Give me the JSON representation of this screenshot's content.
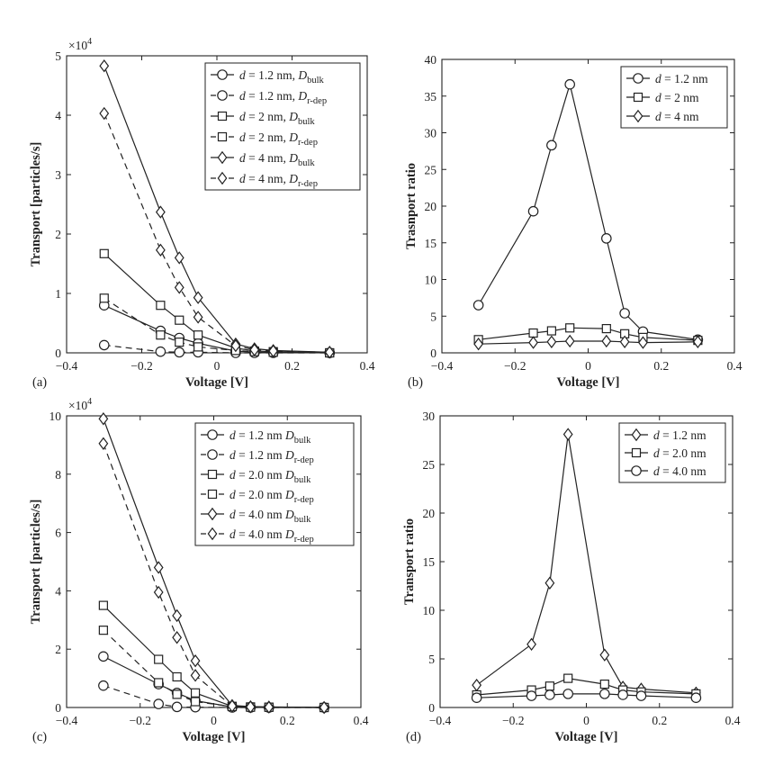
{
  "chart_data": [
    {
      "id": "a",
      "type": "line",
      "panel_label": "(a)",
      "xlabel": "Voltage [V]",
      "ylabel": "Transport [particles/s]",
      "xlim": [
        -0.4,
        0.4
      ],
      "ylim": [
        0,
        5
      ],
      "xticks": [
        -0.4,
        -0.2,
        0,
        0.2,
        0.4
      ],
      "xticklabels": [
        "−0.4",
        "−0.2",
        "0",
        "0.2",
        "0.4"
      ],
      "yticks": [
        0,
        1,
        2,
        3,
        4,
        5
      ],
      "yticklabels": [
        "0",
        "1",
        "2",
        "3",
        "4",
        "5"
      ],
      "exponent": {
        "base": "×10",
        "power": "4"
      },
      "legend_position": "top-right",
      "x": [
        -0.3,
        -0.15,
        -0.1,
        -0.05,
        0.05,
        0.1,
        0.15,
        0.3
      ],
      "series": [
        {
          "name": "d = 1.2 nm, D_bulk",
          "label_pre": "d",
          "label_mid": " = 1.2 nm, ",
          "label_D": "D",
          "label_sub": "bulk",
          "marker": "circle",
          "dash": false,
          "values": [
            0.8,
            0.37,
            0.25,
            0.16,
            0.03,
            0.01,
            0.01,
            0.0
          ]
        },
        {
          "name": "d = 1.2 nm, D_r-dep",
          "label_pre": "d",
          "label_mid": " = 1.2 nm, ",
          "label_D": "D",
          "label_sub": "r-dep",
          "marker": "circle",
          "dash": true,
          "values": [
            0.13,
            0.02,
            0.01,
            0.01,
            0.0,
            0.0,
            0.0,
            0.0
          ]
        },
        {
          "name": "d = 2 nm, D_bulk",
          "label_pre": "d",
          "label_mid": " = 2 nm, ",
          "label_D": "D",
          "label_sub": "bulk",
          "marker": "square",
          "dash": false,
          "values": [
            1.67,
            0.8,
            0.55,
            0.3,
            0.08,
            0.03,
            0.02,
            0.0
          ]
        },
        {
          "name": "d = 2 nm, D_r-dep",
          "label_pre": "d",
          "label_mid": " = 2 nm, ",
          "label_D": "D",
          "label_sub": "r-dep",
          "marker": "square",
          "dash": true,
          "values": [
            0.92,
            0.3,
            0.18,
            0.1,
            0.04,
            0.02,
            0.01,
            0.0
          ]
        },
        {
          "name": "d = 4 nm, D_bulk",
          "label_pre": "d",
          "label_mid": " = 4 nm, ",
          "label_D": "D",
          "label_sub": "bulk",
          "marker": "diamond",
          "dash": false,
          "values": [
            4.83,
            2.37,
            1.6,
            0.93,
            0.15,
            0.07,
            0.04,
            0.01
          ]
        },
        {
          "name": "d = 4 nm, D_r-dep",
          "label_pre": "d",
          "label_mid": " = 4 nm, ",
          "label_D": "D",
          "label_sub": "r-dep",
          "marker": "diamond",
          "dash": true,
          "values": [
            4.03,
            1.73,
            1.1,
            0.6,
            0.12,
            0.05,
            0.03,
            0.01
          ]
        }
      ]
    },
    {
      "id": "b",
      "type": "line",
      "panel_label": "(b)",
      "xlabel": "Voltage [V]",
      "ylabel": "Trasnport ratio",
      "xlim": [
        -0.4,
        0.4
      ],
      "ylim": [
        0,
        40
      ],
      "xticks": [
        -0.4,
        -0.2,
        0,
        0.2,
        0.4
      ],
      "xticklabels": [
        "−0.4",
        "−0.2",
        "0",
        "0.2",
        "0.4"
      ],
      "yticks": [
        0,
        5,
        10,
        15,
        20,
        25,
        30,
        35,
        40
      ],
      "yticklabels": [
        "0",
        "5",
        "10",
        "15",
        "20",
        "25",
        "30",
        "35",
        "40"
      ],
      "legend_position": "top-right",
      "x": [
        -0.3,
        -0.15,
        -0.1,
        -0.05,
        0.05,
        0.1,
        0.15,
        0.3
      ],
      "series": [
        {
          "name": "d = 1.2 nm",
          "label_pre": "d",
          "label_mid": " = 1.2 nm",
          "marker": "circle",
          "dash": false,
          "values": [
            6.5,
            19.3,
            28.3,
            36.6,
            15.6,
            5.4,
            2.9,
            1.8
          ]
        },
        {
          "name": "d = 2 nm",
          "label_pre": "d",
          "label_mid": " = 2 nm",
          "marker": "square",
          "dash": false,
          "values": [
            1.8,
            2.7,
            3.0,
            3.4,
            3.3,
            2.6,
            2.1,
            1.7
          ]
        },
        {
          "name": "d = 4 nm",
          "label_pre": "d",
          "label_mid": " = 4 nm",
          "marker": "diamond",
          "dash": false,
          "values": [
            1.2,
            1.4,
            1.5,
            1.6,
            1.6,
            1.5,
            1.4,
            1.5
          ]
        }
      ]
    },
    {
      "id": "c",
      "type": "line",
      "panel_label": "(c)",
      "xlabel": "Voltage [V]",
      "ylabel": "Transport [particles/s]",
      "xlim": [
        -0.4,
        0.4
      ],
      "ylim": [
        0,
        10
      ],
      "xticks": [
        -0.4,
        -0.2,
        0,
        0.2,
        0.4
      ],
      "xticklabels": [
        "−0.4",
        "−0.2",
        "0",
        "0.2",
        "0.4"
      ],
      "yticks": [
        0,
        2,
        4,
        6,
        8,
        10
      ],
      "yticklabels": [
        "0",
        "2",
        "4",
        "6",
        "8",
        "10"
      ],
      "exponent": {
        "base": "×10",
        "power": "4"
      },
      "legend_position": "top-right",
      "x": [
        -0.3,
        -0.15,
        -0.1,
        -0.05,
        0.05,
        0.1,
        0.15,
        0.3
      ],
      "series": [
        {
          "name": "d = 1.2 nm D_bulk",
          "label_pre": "d",
          "label_mid": " = 1.2 nm ",
          "label_D": "D",
          "label_sub": "bulk",
          "marker": "circle",
          "dash": false,
          "values": [
            1.75,
            0.8,
            0.5,
            0.23,
            0.02,
            0.01,
            0.0,
            0.0
          ]
        },
        {
          "name": "d = 1.2 nm D_r-dep",
          "label_pre": "d",
          "label_mid": " = 1.2 nm ",
          "label_D": "D",
          "label_sub": "r-dep",
          "marker": "circle",
          "dash": true,
          "values": [
            0.75,
            0.12,
            0.02,
            0.01,
            0.0,
            0.0,
            0.0,
            0.0
          ]
        },
        {
          "name": "d = 2.0 nm D_bulk",
          "label_pre": "d",
          "label_mid": " = 2.0 nm ",
          "label_D": "D",
          "label_sub": "bulk",
          "marker": "square",
          "dash": false,
          "values": [
            3.5,
            1.65,
            1.05,
            0.5,
            0.04,
            0.02,
            0.01,
            0.0
          ]
        },
        {
          "name": "d = 2.0 nm D_r-dep",
          "label_pre": "d",
          "label_mid": " = 2.0 nm ",
          "label_D": "D",
          "label_sub": "r-dep",
          "marker": "square",
          "dash": true,
          "values": [
            2.65,
            0.85,
            0.45,
            0.2,
            0.03,
            0.01,
            0.01,
            0.0
          ]
        },
        {
          "name": "d = 4.0 nm D_bulk",
          "label_pre": "d",
          "label_mid": " = 4.0 nm ",
          "label_D": "D",
          "label_sub": "bulk",
          "marker": "diamond",
          "dash": false,
          "values": [
            9.9,
            4.8,
            3.15,
            1.6,
            0.07,
            0.03,
            0.02,
            0.0
          ]
        },
        {
          "name": "d = 4.0 nm D_r-dep",
          "label_pre": "d",
          "label_mid": " = 4.0 nm ",
          "label_D": "D",
          "label_sub": "r-dep",
          "marker": "diamond",
          "dash": true,
          "values": [
            9.05,
            3.95,
            2.4,
            1.1,
            0.05,
            0.02,
            0.01,
            0.0
          ]
        }
      ]
    },
    {
      "id": "d",
      "type": "line",
      "panel_label": "(d)",
      "xlabel": "Voltage [V]",
      "ylabel": "Transport ratio",
      "xlim": [
        -0.4,
        0.4
      ],
      "ylim": [
        0,
        30
      ],
      "xticks": [
        -0.4,
        -0.2,
        0,
        0.2,
        0.4
      ],
      "xticklabels": [
        "−0.4",
        "−0.2",
        "0",
        "0.2",
        "0.4"
      ],
      "yticks": [
        0,
        5,
        10,
        15,
        20,
        25,
        30
      ],
      "yticklabels": [
        "0",
        "5",
        "10",
        "15",
        "20",
        "25",
        "30"
      ],
      "legend_position": "top-right",
      "x": [
        -0.3,
        -0.15,
        -0.1,
        -0.05,
        0.05,
        0.1,
        0.15,
        0.3
      ],
      "series": [
        {
          "name": "d = 1.2 nm",
          "label_pre": "d",
          "label_mid": " = 1.2 nm",
          "marker": "diamond",
          "dash": false,
          "values": [
            2.3,
            6.5,
            12.8,
            28.1,
            5.4,
            2.1,
            1.9,
            1.5
          ]
        },
        {
          "name": "d = 2.0 nm",
          "label_pre": "d",
          "label_mid": " = 2.0 nm",
          "marker": "square",
          "dash": false,
          "values": [
            1.3,
            1.8,
            2.2,
            3.0,
            2.4,
            1.8,
            1.6,
            1.4
          ]
        },
        {
          "name": "d = 4.0 nm",
          "label_pre": "d",
          "label_mid": " = 4.0 nm",
          "marker": "circle",
          "dash": false,
          "values": [
            1.0,
            1.2,
            1.3,
            1.4,
            1.4,
            1.3,
            1.2,
            1.0
          ]
        }
      ]
    }
  ]
}
